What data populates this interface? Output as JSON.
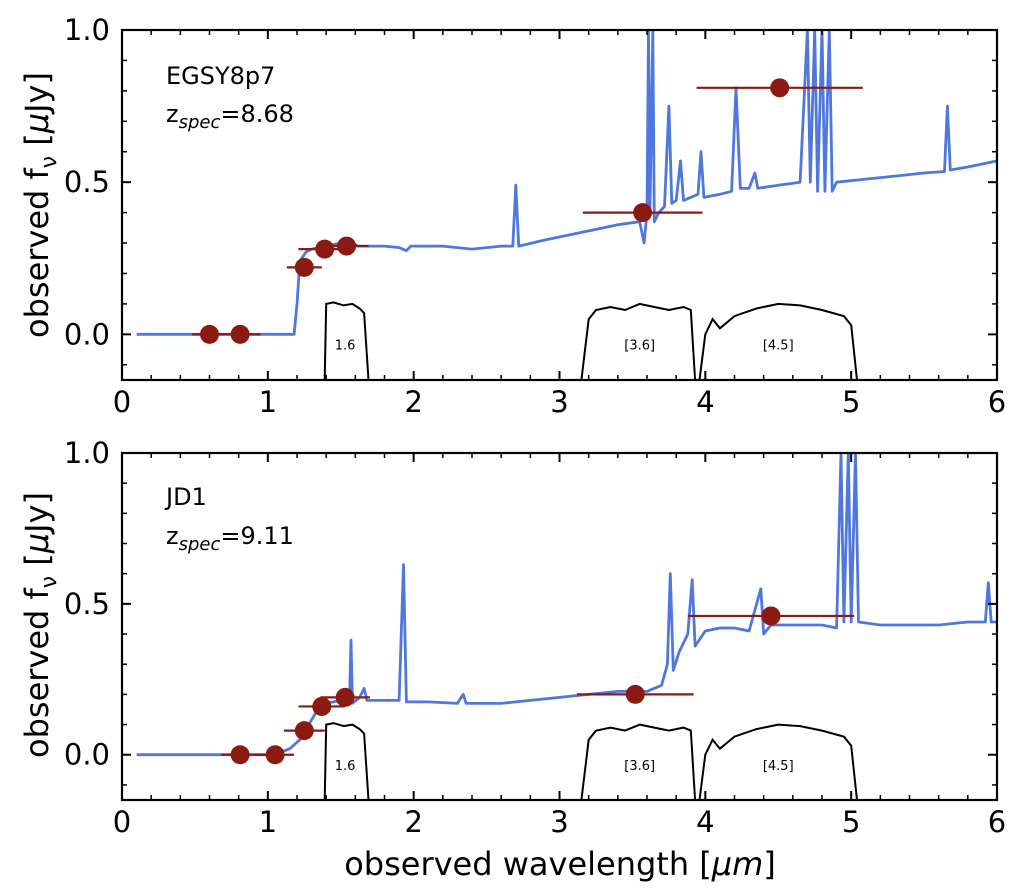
{
  "figure": {
    "xlabel_main": "observed wavelength [",
    "xlabel_unit": "μm",
    "xlabel_end": "]"
  },
  "colors": {
    "model": "#4f77de",
    "points": "#8b1a12",
    "filters": "#000000"
  },
  "chart_data": [
    {
      "type": "line",
      "id": "top",
      "object_name": "EGSY8p7",
      "z_prefix": "z",
      "z_sub": "spec",
      "z_value": "=8.68",
      "ylabel_main": "observed f",
      "ylabel_sub": "ν",
      "ylabel_open": " [",
      "ylabel_mu": "μ",
      "ylabel_unit": "Jy]",
      "xlim": [
        0,
        6
      ],
      "ylim": [
        -0.15,
        1.0
      ],
      "xticks": [
        "0",
        "1",
        "2",
        "3",
        "4",
        "5",
        "6"
      ],
      "yticks": [
        "0.0",
        "0.5",
        "1.0"
      ],
      "ytick_values": [
        0.0,
        0.5,
        1.0
      ],
      "model_points": [
        [
          0.1,
          0.0
        ],
        [
          1.18,
          0.0
        ],
        [
          1.2,
          0.1
        ],
        [
          1.22,
          0.24
        ],
        [
          1.26,
          0.27
        ],
        [
          1.3,
          0.28
        ],
        [
          1.4,
          0.29
        ],
        [
          1.5,
          0.3
        ],
        [
          1.55,
          0.27
        ],
        [
          1.58,
          0.3
        ],
        [
          1.62,
          0.29
        ],
        [
          1.8,
          0.29
        ],
        [
          1.9,
          0.285
        ],
        [
          1.95,
          0.275
        ],
        [
          1.98,
          0.29
        ],
        [
          2.2,
          0.29
        ],
        [
          2.4,
          0.28
        ],
        [
          2.6,
          0.29
        ],
        [
          2.68,
          0.29
        ],
        [
          2.7,
          0.49
        ],
        [
          2.72,
          0.29
        ],
        [
          2.9,
          0.31
        ],
        [
          3.2,
          0.34
        ],
        [
          3.4,
          0.36
        ],
        [
          3.55,
          0.37
        ],
        [
          3.58,
          0.3
        ],
        [
          3.6,
          0.4
        ],
        [
          3.61,
          1.0
        ],
        [
          3.62,
          0.4
        ],
        [
          3.64,
          1.0
        ],
        [
          3.65,
          0.37
        ],
        [
          3.68,
          0.4
        ],
        [
          3.72,
          0.42
        ],
        [
          3.75,
          0.75
        ],
        [
          3.77,
          0.43
        ],
        [
          3.8,
          0.44
        ],
        [
          3.83,
          0.57
        ],
        [
          3.85,
          0.44
        ],
        [
          3.95,
          0.46
        ],
        [
          3.97,
          0.6
        ],
        [
          3.99,
          0.45
        ],
        [
          4.1,
          0.46
        ],
        [
          4.18,
          0.47
        ],
        [
          4.21,
          0.81
        ],
        [
          4.24,
          0.48
        ],
        [
          4.3,
          0.48
        ],
        [
          4.34,
          0.53
        ],
        [
          4.36,
          0.48
        ],
        [
          4.5,
          0.49
        ],
        [
          4.65,
          0.5
        ],
        [
          4.7,
          1.0
        ],
        [
          4.72,
          0.5
        ],
        [
          4.75,
          1.0
        ],
        [
          4.77,
          0.47
        ],
        [
          4.8,
          1.0
        ],
        [
          4.82,
          0.47
        ],
        [
          4.85,
          1.0
        ],
        [
          4.87,
          0.47
        ],
        [
          4.9,
          0.5
        ],
        [
          5.1,
          0.51
        ],
        [
          5.3,
          0.52
        ],
        [
          5.5,
          0.53
        ],
        [
          5.64,
          0.535
        ],
        [
          5.66,
          0.75
        ],
        [
          5.68,
          0.54
        ],
        [
          5.8,
          0.55
        ],
        [
          6.0,
          0.57
        ]
      ],
      "photometry": [
        {
          "x": 0.6,
          "y": 0.0,
          "xerr": 0.12
        },
        {
          "x": 0.81,
          "y": 0.0,
          "xerr": 0.14
        },
        {
          "x": 1.25,
          "y": 0.22,
          "xerr": 0.12
        },
        {
          "x": 1.39,
          "y": 0.28,
          "xerr": 0.18
        },
        {
          "x": 1.54,
          "y": 0.29,
          "xerr": 0.15
        },
        {
          "x": 3.57,
          "y": 0.4,
          "xerr": 0.41
        },
        {
          "x": 4.51,
          "y": 0.81,
          "xerr": 0.57
        }
      ],
      "filters": [
        {
          "label": "1.6",
          "label_x": 1.53,
          "points": [
            [
              1.39,
              -0.15
            ],
            [
              1.4,
              0.1
            ],
            [
              1.45,
              0.105
            ],
            [
              1.52,
              0.095
            ],
            [
              1.58,
              0.1
            ],
            [
              1.63,
              0.085
            ],
            [
              1.66,
              0.07
            ],
            [
              1.69,
              -0.15
            ]
          ]
        },
        {
          "label": "[3.6]",
          "label_x": 3.55,
          "points": [
            [
              3.15,
              -0.15
            ],
            [
              3.2,
              0.05
            ],
            [
              3.25,
              0.08
            ],
            [
              3.35,
              0.09
            ],
            [
              3.45,
              0.08
            ],
            [
              3.55,
              0.1
            ],
            [
              3.65,
              0.09
            ],
            [
              3.75,
              0.08
            ],
            [
              3.85,
              0.09
            ],
            [
              3.9,
              0.08
            ],
            [
              3.93,
              -0.15
            ]
          ]
        },
        {
          "label": "[4.5]",
          "label_x": 4.5,
          "points": [
            [
              3.96,
              -0.15
            ],
            [
              4.0,
              0.0
            ],
            [
              4.05,
              0.05
            ],
            [
              4.1,
              0.02
            ],
            [
              4.2,
              0.06
            ],
            [
              4.35,
              0.085
            ],
            [
              4.5,
              0.1
            ],
            [
              4.65,
              0.095
            ],
            [
              4.8,
              0.08
            ],
            [
              4.95,
              0.06
            ],
            [
              5.0,
              0.03
            ],
            [
              5.04,
              -0.15
            ]
          ]
        }
      ]
    },
    {
      "type": "line",
      "id": "bottom",
      "object_name": "JD1",
      "z_prefix": "z",
      "z_sub": "spec",
      "z_value": "=9.11",
      "ylabel_main": "observed f",
      "ylabel_sub": "ν",
      "ylabel_open": " [",
      "ylabel_mu": "μ",
      "ylabel_unit": "Jy]",
      "xlim": [
        0,
        6
      ],
      "ylim": [
        -0.15,
        1.0
      ],
      "xticks": [
        "0",
        "1",
        "2",
        "3",
        "4",
        "5",
        "6"
      ],
      "yticks": [
        "0.0",
        "0.5",
        "1.0"
      ],
      "ytick_values": [
        0.0,
        0.5,
        1.0
      ],
      "model_points": [
        [
          0.1,
          0.0
        ],
        [
          1.05,
          0.0
        ],
        [
          1.15,
          0.02
        ],
        [
          1.22,
          0.05
        ],
        [
          1.28,
          0.1
        ],
        [
          1.33,
          0.14
        ],
        [
          1.4,
          0.17
        ],
        [
          1.5,
          0.18
        ],
        [
          1.56,
          0.18
        ],
        [
          1.57,
          0.38
        ],
        [
          1.58,
          0.17
        ],
        [
          1.63,
          0.19
        ],
        [
          1.66,
          0.22
        ],
        [
          1.68,
          0.18
        ],
        [
          1.8,
          0.18
        ],
        [
          1.9,
          0.18
        ],
        [
          1.93,
          0.63
        ],
        [
          1.95,
          0.175
        ],
        [
          2.1,
          0.175
        ],
        [
          2.3,
          0.17
        ],
        [
          2.34,
          0.2
        ],
        [
          2.36,
          0.17
        ],
        [
          2.6,
          0.17
        ],
        [
          2.8,
          0.18
        ],
        [
          3.0,
          0.19
        ],
        [
          3.2,
          0.2
        ],
        [
          3.4,
          0.21
        ],
        [
          3.6,
          0.21
        ],
        [
          3.7,
          0.23
        ],
        [
          3.74,
          0.3
        ],
        [
          3.76,
          0.6
        ],
        [
          3.78,
          0.28
        ],
        [
          3.82,
          0.34
        ],
        [
          3.88,
          0.4
        ],
        [
          3.91,
          0.58
        ],
        [
          3.93,
          0.36
        ],
        [
          4.0,
          0.41
        ],
        [
          4.1,
          0.42
        ],
        [
          4.2,
          0.42
        ],
        [
          4.3,
          0.41
        ],
        [
          4.38,
          0.55
        ],
        [
          4.4,
          0.4
        ],
        [
          4.45,
          0.43
        ],
        [
          4.6,
          0.43
        ],
        [
          4.8,
          0.43
        ],
        [
          4.9,
          0.42
        ],
        [
          4.93,
          1.0
        ],
        [
          4.95,
          0.44
        ],
        [
          4.98,
          1.0
        ],
        [
          5.0,
          0.44
        ],
        [
          5.03,
          1.0
        ],
        [
          5.05,
          0.44
        ],
        [
          5.2,
          0.43
        ],
        [
          5.4,
          0.43
        ],
        [
          5.6,
          0.43
        ],
        [
          5.8,
          0.44
        ],
        [
          5.92,
          0.44
        ],
        [
          5.94,
          0.57
        ],
        [
          5.96,
          0.44
        ],
        [
          6.0,
          0.44
        ]
      ],
      "photometry": [
        {
          "x": 0.81,
          "y": 0.0,
          "xerr": 0.13
        },
        {
          "x": 1.05,
          "y": 0.0,
          "xerr": 0.13
        },
        {
          "x": 1.25,
          "y": 0.08,
          "xerr": 0.14
        },
        {
          "x": 1.37,
          "y": 0.16,
          "xerr": 0.16
        },
        {
          "x": 1.53,
          "y": 0.19,
          "xerr": 0.17
        },
        {
          "x": 3.52,
          "y": 0.2,
          "xerr": 0.4
        },
        {
          "x": 4.45,
          "y": 0.46,
          "xerr": 0.57
        }
      ],
      "filters": [
        {
          "label": "1.6",
          "label_x": 1.53,
          "points": [
            [
              1.39,
              -0.15
            ],
            [
              1.4,
              0.1
            ],
            [
              1.45,
              0.105
            ],
            [
              1.52,
              0.095
            ],
            [
              1.58,
              0.1
            ],
            [
              1.63,
              0.085
            ],
            [
              1.66,
              0.07
            ],
            [
              1.69,
              -0.15
            ]
          ]
        },
        {
          "label": "[3.6]",
          "label_x": 3.55,
          "points": [
            [
              3.15,
              -0.15
            ],
            [
              3.2,
              0.05
            ],
            [
              3.25,
              0.08
            ],
            [
              3.35,
              0.09
            ],
            [
              3.45,
              0.08
            ],
            [
              3.55,
              0.1
            ],
            [
              3.65,
              0.09
            ],
            [
              3.75,
              0.08
            ],
            [
              3.85,
              0.09
            ],
            [
              3.9,
              0.08
            ],
            [
              3.93,
              -0.15
            ]
          ]
        },
        {
          "label": "[4.5]",
          "label_x": 4.5,
          "points": [
            [
              3.96,
              -0.15
            ],
            [
              4.0,
              0.0
            ],
            [
              4.05,
              0.05
            ],
            [
              4.1,
              0.02
            ],
            [
              4.2,
              0.06
            ],
            [
              4.35,
              0.085
            ],
            [
              4.5,
              0.1
            ],
            [
              4.65,
              0.095
            ],
            [
              4.8,
              0.08
            ],
            [
              4.95,
              0.06
            ],
            [
              5.0,
              0.03
            ],
            [
              5.04,
              -0.15
            ]
          ]
        }
      ]
    }
  ]
}
